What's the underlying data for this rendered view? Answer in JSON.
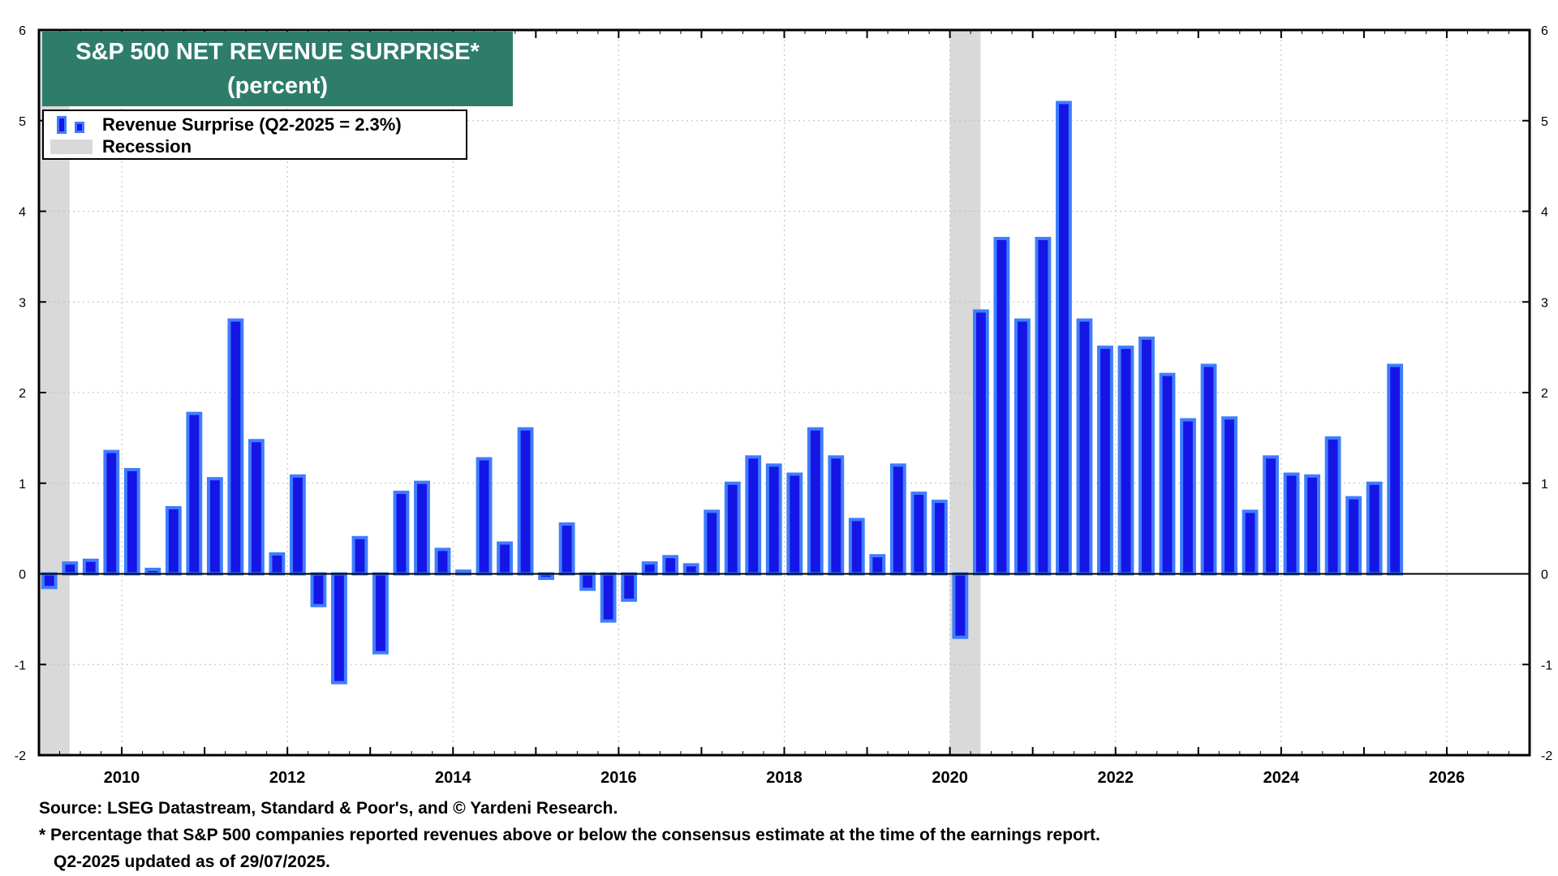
{
  "title": {
    "line1": "S&P 500 NET REVENUE SURPRISE*",
    "line2": "(percent)"
  },
  "legend": {
    "series_label": "Revenue Surprise (Q2-2025 = 2.3%)",
    "recession_label": "Recession"
  },
  "footer": {
    "source": "Source: LSEG Datastream, Standard & Poor's, and © Yardeni Research.",
    "note": "* Percentage that S&P 500 companies reported revenues above or below the consensus estimate at the time of the earnings report.",
    "updated": "Q2-2025 updated as of 29/07/2025."
  },
  "colors": {
    "bar_fill": "#1515e6",
    "bar_edge": "#3f7dff",
    "recession": "#d9d9d9",
    "title_bg": "#2e7d6b"
  },
  "chart_data": {
    "type": "bar",
    "series": [
      {
        "name": "Revenue Surprise (Q2-2025 = 2.3%)",
        "x": [
          "2009Q1",
          "2009Q2",
          "2009Q3",
          "2009Q4",
          "2010Q1",
          "2010Q2",
          "2010Q3",
          "2010Q4",
          "2011Q1",
          "2011Q2",
          "2011Q3",
          "2011Q4",
          "2012Q1",
          "2012Q2",
          "2012Q3",
          "2012Q4",
          "2013Q1",
          "2013Q2",
          "2013Q3",
          "2013Q4",
          "2014Q1",
          "2014Q2",
          "2014Q3",
          "2014Q4",
          "2015Q1",
          "2015Q2",
          "2015Q3",
          "2015Q4",
          "2016Q1",
          "2016Q2",
          "2016Q3",
          "2016Q4",
          "2017Q1",
          "2017Q2",
          "2017Q3",
          "2017Q4",
          "2018Q1",
          "2018Q2",
          "2018Q3",
          "2018Q4",
          "2019Q1",
          "2019Q2",
          "2019Q3",
          "2019Q4",
          "2020Q1",
          "2020Q2",
          "2020Q3",
          "2020Q4",
          "2021Q1",
          "2021Q2",
          "2021Q3",
          "2021Q4",
          "2022Q1",
          "2022Q2",
          "2022Q3",
          "2022Q4",
          "2023Q1",
          "2023Q2",
          "2023Q3",
          "2023Q4",
          "2024Q1",
          "2024Q2",
          "2024Q3",
          "2024Q4",
          "2025Q1",
          "2025Q2"
        ],
        "values": [
          -0.15,
          0.12,
          0.15,
          1.35,
          1.15,
          0.05,
          0.73,
          1.77,
          1.05,
          2.8,
          1.47,
          0.22,
          1.08,
          -0.35,
          -1.2,
          0.4,
          -0.87,
          0.9,
          1.01,
          0.27,
          0.03,
          1.27,
          0.34,
          1.6,
          -0.05,
          0.55,
          -0.17,
          -0.52,
          -0.29,
          0.12,
          0.19,
          0.1,
          0.69,
          1.0,
          1.29,
          1.2,
          1.1,
          1.6,
          1.29,
          0.6,
          0.2,
          1.2,
          0.89,
          0.8,
          -0.7,
          2.9,
          3.7,
          2.8,
          3.7,
          5.2,
          2.8,
          2.5,
          2.5,
          2.6,
          2.2,
          1.7,
          2.3,
          1.72,
          0.69,
          1.29,
          1.1,
          1.08,
          1.5,
          0.84,
          1.0,
          2.3
        ]
      }
    ],
    "recessions": [
      {
        "start": "2009Q1",
        "end": "2009Q2"
      },
      {
        "start": "2020Q1",
        "end": "2020Q2"
      }
    ],
    "x_ticks": [
      "2010",
      "2012",
      "2014",
      "2016",
      "2018",
      "2020",
      "2022",
      "2024",
      "2026"
    ],
    "y_ticks": [
      -2,
      -1,
      0,
      1,
      2,
      3,
      4,
      5,
      6
    ],
    "ylim": [
      -2,
      6
    ],
    "xlim": [
      2009.0,
      2027.0
    ],
    "grid": true,
    "legend_position": "top-left"
  }
}
